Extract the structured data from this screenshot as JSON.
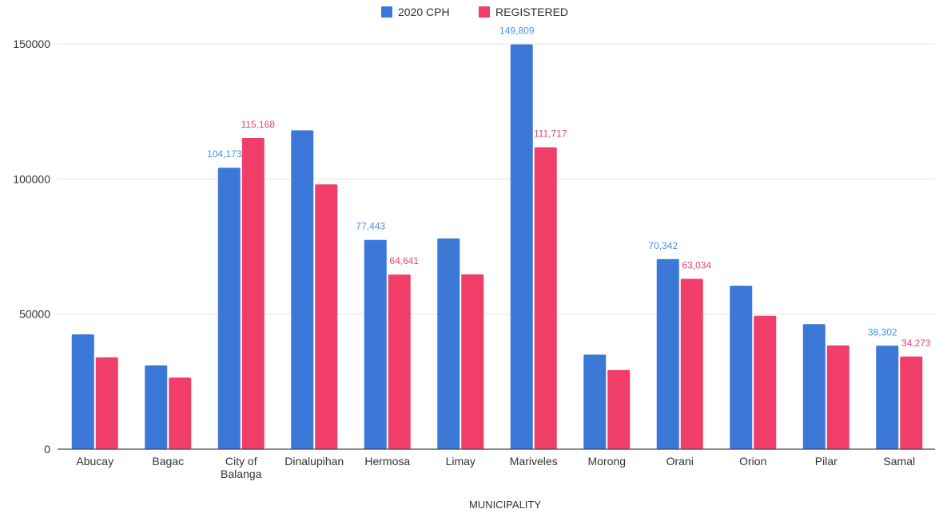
{
  "chart_data": {
    "type": "bar",
    "title": "",
    "xlabel": "MUNICIPALITY",
    "ylabel": "",
    "ylim": [
      0,
      150000
    ],
    "yticks": [
      0,
      50000,
      100000,
      150000
    ],
    "ytick_labels": [
      "0",
      "50000",
      "100000",
      "150000"
    ],
    "grid": true,
    "legend_position": "top-center",
    "categories": [
      "Abucay",
      "Bagac",
      "City of Balanga",
      "Dinalupihan",
      "Hermosa",
      "Limay",
      "Mariveles",
      "Morong",
      "Orani",
      "Orion",
      "Pilar",
      "Samal"
    ],
    "category_label_lines": [
      [
        "Abucay"
      ],
      [
        "Bagac"
      ],
      [
        "City of",
        "Balanga"
      ],
      [
        "Dinalupihan"
      ],
      [
        "Hermosa"
      ],
      [
        "Limay"
      ],
      [
        "Mariveles"
      ],
      [
        "Morong"
      ],
      [
        "Orani"
      ],
      [
        "Orion"
      ],
      [
        "Pilar"
      ],
      [
        "Samal"
      ]
    ],
    "series": [
      {
        "name": "2020 CPH",
        "color": "#3b78d8",
        "label_color": "#4a90e2",
        "values": [
          42500,
          31000,
          104173,
          118000,
          77443,
          78000,
          149809,
          35000,
          70342,
          60500,
          46300,
          38302
        ],
        "data_labels": [
          "",
          "",
          "104,173",
          "",
          "77,443",
          "",
          "149,809",
          "",
          "70,342",
          "",
          "",
          "38,302"
        ]
      },
      {
        "name": "REGISTERED",
        "color": "#f03e68",
        "label_color": "#e8457a",
        "values": [
          34000,
          26500,
          115168,
          98000,
          64641,
          64700,
          111717,
          29300,
          63034,
          49400,
          38400,
          34273
        ],
        "data_labels": [
          "",
          "",
          "115,168",
          "",
          "64,641",
          "",
          "111,717",
          "",
          "63,034",
          "",
          "",
          "34,273"
        ]
      }
    ]
  }
}
